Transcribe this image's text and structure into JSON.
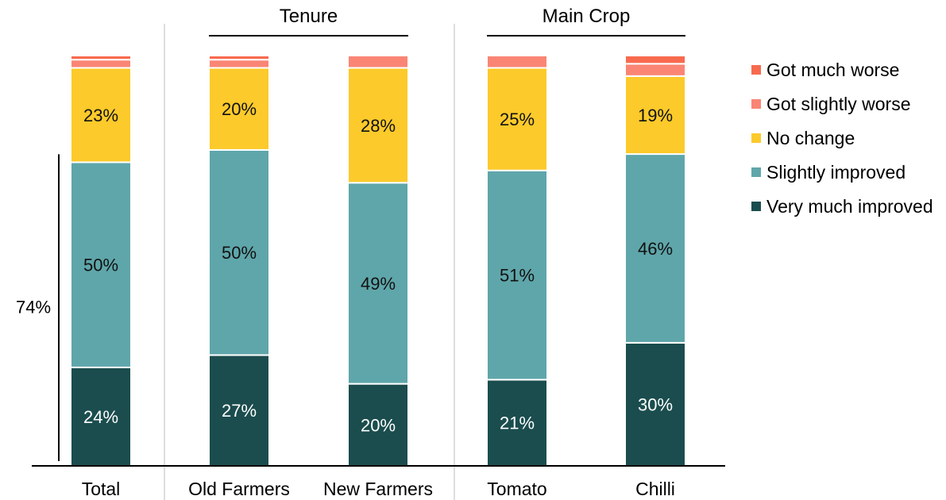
{
  "chart_data": {
    "type": "bar",
    "stacked": true,
    "normalized": true,
    "ylim": [
      0,
      100
    ],
    "grid": false,
    "legend_position": "right",
    "categories": [
      "Total",
      "Old Farmers",
      "New Farmers",
      "Tomato",
      "Chilli"
    ],
    "groups": [
      {
        "label": "Tenure",
        "categories": [
          "Old Farmers",
          "New Farmers"
        ]
      },
      {
        "label": "Main Crop",
        "categories": [
          "Tomato",
          "Chilli"
        ]
      }
    ],
    "series": [
      {
        "name": "Very much improved",
        "color": "#1b4d4e",
        "label_color": "#ffffff",
        "values": [
          24,
          27,
          20,
          21,
          30
        ]
      },
      {
        "name": "Slightly improved",
        "color": "#5fa6aa",
        "label_color": "#111111",
        "values": [
          50,
          50,
          49,
          51,
          46
        ]
      },
      {
        "name": "No change",
        "color": "#fcca2b",
        "label_color": "#111111",
        "values": [
          23,
          20,
          28,
          25,
          19
        ]
      },
      {
        "name": "Got slightly worse",
        "color": "#fa8575",
        "label_color": "#111111",
        "values": [
          2,
          2,
          3,
          3,
          3
        ]
      },
      {
        "name": "Got much worse",
        "color": "#f86a4e",
        "label_color": "#111111",
        "values": [
          1,
          1,
          0,
          0,
          2
        ]
      }
    ],
    "value_labels": [
      {
        "category": "Total",
        "series": "Very much improved",
        "text": "24%"
      },
      {
        "category": "Total",
        "series": "Slightly improved",
        "text": "50%"
      },
      {
        "category": "Total",
        "series": "No change",
        "text": "23%"
      },
      {
        "category": "Old Farmers",
        "series": "Very much improved",
        "text": "27%"
      },
      {
        "category": "Old Farmers",
        "series": "Slightly improved",
        "text": "50%"
      },
      {
        "category": "Old Farmers",
        "series": "No change",
        "text": "20%"
      },
      {
        "category": "New Farmers",
        "series": "Very much improved",
        "text": "20%"
      },
      {
        "category": "New Farmers",
        "series": "Slightly improved",
        "text": "49%"
      },
      {
        "category": "New Farmers",
        "series": "No change",
        "text": "28%"
      },
      {
        "category": "Tomato",
        "series": "Very much improved",
        "text": "21%"
      },
      {
        "category": "Tomato",
        "series": "Slightly improved",
        "text": "51%"
      },
      {
        "category": "Tomato",
        "series": "No change",
        "text": "25%"
      },
      {
        "category": "Chilli",
        "series": "Very much improved",
        "text": "30%"
      },
      {
        "category": "Chilli",
        "series": "Slightly improved",
        "text": "46%"
      },
      {
        "category": "Chilli",
        "series": "No change",
        "text": "19%"
      }
    ],
    "bracket_annotation": {
      "text": "74%",
      "category": "Total",
      "from": 0,
      "to": 74
    },
    "legend_order": [
      "Got much worse",
      "Got slightly worse",
      "No change",
      "Slightly improved",
      "Very much improved"
    ]
  }
}
